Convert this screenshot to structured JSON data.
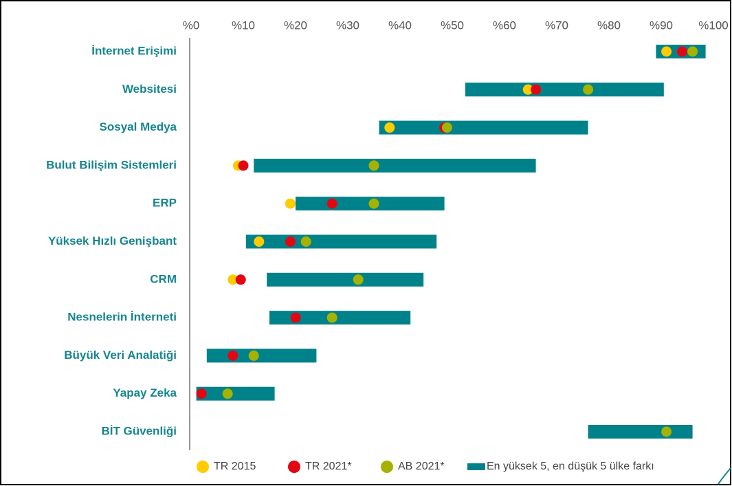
{
  "chart_data": {
    "type": "range",
    "categories": [
      "İnternet Erişimi",
      "Websitesi",
      "Sosyal Medya",
      "Bulut Bilişim Sistemleri",
      "ERP",
      "Yüksek Hızlı Genişbant",
      "CRM",
      "Nesnelerin İnterneti",
      "Büyük Veri Analatiği",
      "Yapay Zeka",
      "BİT Güvenliği"
    ],
    "xlim": [
      0,
      100
    ],
    "xticks": [
      {
        "value": 0,
        "label": "%0"
      },
      {
        "value": 10,
        "label": "%10"
      },
      {
        "value": 20,
        "label": "%20"
      },
      {
        "value": 30,
        "label": "%30"
      },
      {
        "value": 40,
        "label": "%40"
      },
      {
        "value": 50,
        "label": "%50"
      },
      {
        "value": 60,
        "label": "%60"
      },
      {
        "value": 70,
        "label": "%70"
      },
      {
        "value": 80,
        "label": "%80"
      },
      {
        "value": 90,
        "label": "%90"
      },
      {
        "value": 100,
        "label": "%100"
      }
    ],
    "range": {
      "name": "En yüksek 5, en düşük 5 ülke farkı",
      "color": "#00828a",
      "low": [
        89,
        52.5,
        36,
        12,
        20,
        10.5,
        14.5,
        15,
        3,
        1,
        76
      ],
      "high": [
        98.5,
        90.5,
        76,
        66,
        48.5,
        47,
        44.5,
        42,
        24,
        16,
        96
      ]
    },
    "series": [
      {
        "name": "TR 2015",
        "color": "#ffcc00",
        "values": [
          91,
          64.5,
          38,
          9,
          19,
          13,
          8,
          null,
          null,
          null,
          null
        ]
      },
      {
        "name": "TR 2021*",
        "color": "#e30613",
        "values": [
          94,
          66,
          48.5,
          10,
          27,
          19,
          9.5,
          20,
          8,
          2,
          null
        ]
      },
      {
        "name": "AB 2021*",
        "color": "#a5b200",
        "values": [
          96,
          76,
          49,
          35,
          35,
          22,
          32,
          27,
          12,
          7,
          91
        ]
      }
    ]
  }
}
